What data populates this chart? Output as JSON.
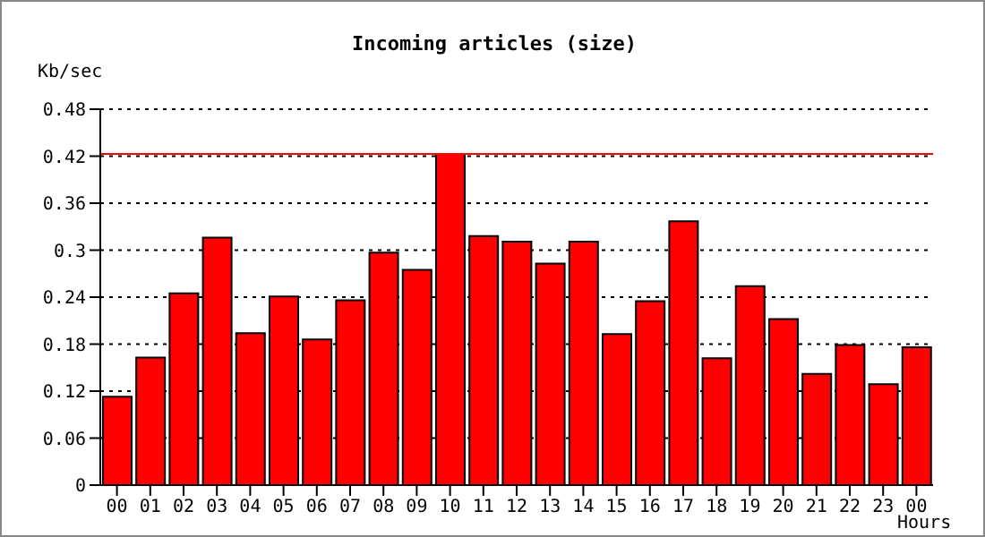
{
  "chart_data": {
    "type": "bar",
    "title": "Incoming articles (size)",
    "ylabel": "Kb/sec",
    "xlabel": "Hours",
    "categories": [
      "00",
      "01",
      "02",
      "03",
      "04",
      "05",
      "06",
      "07",
      "08",
      "09",
      "10",
      "11",
      "12",
      "13",
      "14",
      "15",
      "16",
      "17",
      "18",
      "19",
      "20",
      "21",
      "22",
      "23",
      "00"
    ],
    "values": [
      0.113,
      0.163,
      0.245,
      0.316,
      0.194,
      0.241,
      0.186,
      0.236,
      0.297,
      0.275,
      0.423,
      0.318,
      0.311,
      0.283,
      0.311,
      0.193,
      0.235,
      0.337,
      0.162,
      0.254,
      0.212,
      0.142,
      0.179,
      0.129,
      0.176
    ],
    "color": "#ff0000",
    "ylim": [
      0,
      0.48
    ],
    "yticks": [
      0,
      0.06,
      0.12,
      0.18,
      0.24,
      0.3,
      0.36,
      0.42,
      0.48
    ],
    "grid": "y",
    "ref_lines": [
      {
        "axis": "y",
        "value": 0.423,
        "color": "#ff0000"
      }
    ]
  }
}
